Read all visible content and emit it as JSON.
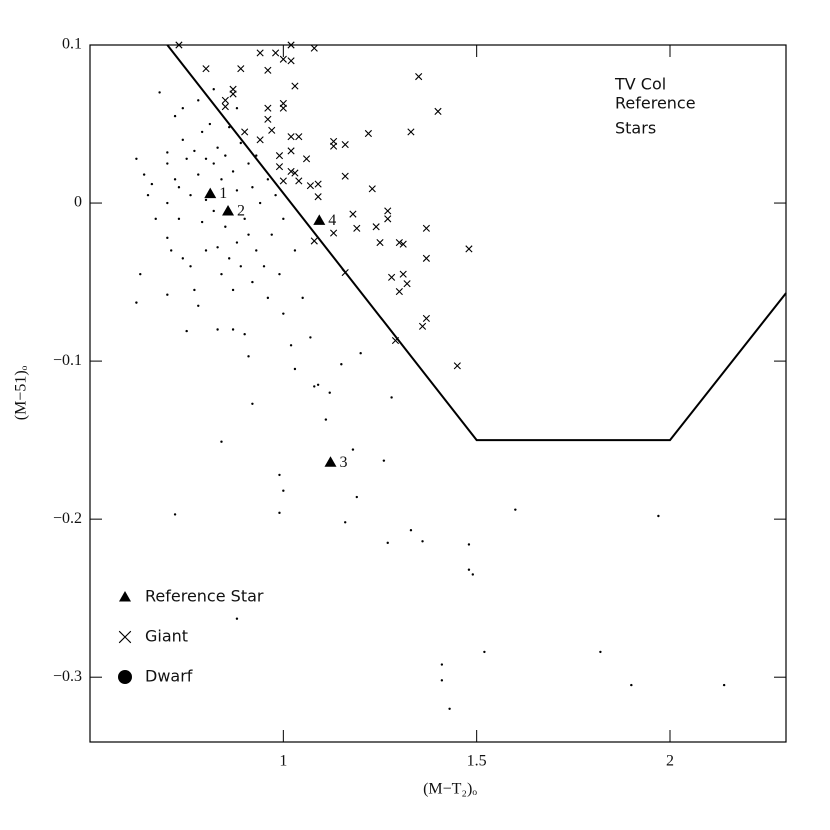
{
  "chart_data": {
    "type": "scatter",
    "annotation": [
      "TV Col",
      "Reference",
      "Stars"
    ],
    "x_label": "(M−T₂)ₒ",
    "y_label": "(M−51)ₒ",
    "xlim": [
      0.5,
      2.3
    ],
    "ylim": [
      -0.341,
      0.1
    ],
    "xticks": [
      1,
      1.5,
      2
    ],
    "yticks": [
      0.1,
      0,
      {
        "value": -0.1,
        "label": "−0.1"
      },
      {
        "value": -0.2,
        "label": "−0.2"
      },
      {
        "value": -0.3,
        "label": "−0.3"
      }
    ],
    "legend": "lower left",
    "boundary": {
      "x": [
        0.7,
        1.5,
        2.0,
        2.3
      ],
      "y": [
        0.1,
        -0.15,
        -0.15,
        -0.057
      ],
      "color": "#000000"
    },
    "series": [
      {
        "name": "Dwarf",
        "marker": "dot",
        "color": "#000000",
        "x": [
          0.62,
          0.64,
          0.65,
          0.63,
          0.62,
          0.66,
          0.67,
          0.68,
          0.7,
          0.7,
          0.7,
          0.7,
          0.71,
          0.7,
          0.72,
          0.72,
          0.73,
          0.73,
          0.74,
          0.74,
          0.75,
          0.75,
          0.76,
          0.76,
          0.77,
          0.77,
          0.78,
          0.78,
          0.79,
          0.79,
          0.8,
          0.8,
          0.8,
          0.81,
          0.82,
          0.82,
          0.83,
          0.83,
          0.84,
          0.84,
          0.85,
          0.85,
          0.86,
          0.86,
          0.87,
          0.87,
          0.88,
          0.88,
          0.89,
          0.89,
          0.9,
          0.9,
          0.91,
          0.91,
          0.92,
          0.92,
          0.93,
          0.93,
          0.94,
          0.95,
          0.96,
          0.96,
          0.97,
          0.98,
          0.99,
          1.0,
          1.0,
          1.02,
          1.03,
          1.05,
          0.74,
          0.78,
          0.82,
          0.88,
          0.87,
          0.92,
          0.84,
          0.99,
          1.0,
          0.99,
          0.72,
          0.88,
          1.08,
          1.11,
          1.12,
          1.09,
          1.15,
          1.2,
          1.16,
          1.18,
          1.19,
          1.26,
          1.27,
          1.28,
          1.33,
          1.36,
          1.41,
          1.41,
          1.43,
          1.48,
          1.48,
          1.49,
          1.52,
          1.6,
          1.82,
          1.9,
          1.97,
          2.14,
          1.07,
          1.03,
          0.91,
          0.83
        ],
        "values": [
          0.028,
          0.018,
          0.005,
          -0.045,
          -0.063,
          0.012,
          -0.01,
          0.07,
          0.032,
          0.025,
          0.0,
          -0.022,
          -0.03,
          -0.058,
          0.055,
          0.015,
          0.01,
          -0.01,
          0.04,
          -0.035,
          0.028,
          -0.081,
          0.005,
          -0.04,
          0.033,
          -0.055,
          0.018,
          -0.065,
          0.045,
          -0.012,
          0.028,
          0.002,
          -0.03,
          0.05,
          0.025,
          -0.005,
          0.035,
          -0.028,
          0.015,
          -0.045,
          0.03,
          -0.015,
          0.048,
          -0.035,
          0.02,
          -0.055,
          0.008,
          -0.025,
          0.038,
          -0.04,
          -0.01,
          -0.083,
          0.025,
          -0.02,
          0.01,
          -0.05,
          0.03,
          -0.03,
          0.0,
          -0.04,
          0.015,
          -0.06,
          -0.02,
          0.005,
          -0.045,
          -0.01,
          -0.07,
          -0.09,
          -0.03,
          -0.06,
          0.06,
          0.065,
          0.072,
          0.06,
          -0.08,
          -0.127,
          -0.151,
          -0.172,
          -0.182,
          -0.196,
          -0.197,
          -0.263,
          -0.116,
          -0.137,
          -0.12,
          -0.115,
          -0.102,
          -0.095,
          -0.202,
          -0.156,
          -0.186,
          -0.163,
          -0.215,
          -0.123,
          -0.207,
          -0.214,
          -0.292,
          -0.302,
          -0.32,
          -0.216,
          -0.232,
          -0.235,
          -0.284,
          -0.194,
          -0.284,
          -0.305,
          -0.198,
          -0.305,
          -0.085,
          -0.105,
          -0.097,
          -0.08
        ]
      },
      {
        "name": "Giant",
        "marker": "cross",
        "color": "#000000",
        "x": [
          0.73,
          0.8,
          0.89,
          0.94,
          0.98,
          0.96,
          1.02,
          1.0,
          1.02,
          1.08,
          1.03,
          0.85,
          0.85,
          0.87,
          0.87,
          0.96,
          1.0,
          1.0,
          0.9,
          0.94,
          0.96,
          0.97,
          1.02,
          1.04,
          1.02,
          0.99,
          1.06,
          1.13,
          1.13,
          1.16,
          1.22,
          1.35,
          1.4,
          1.33,
          0.99,
          1.02,
          1.03,
          1.0,
          1.04,
          1.07,
          1.09,
          1.09,
          1.16,
          1.23,
          1.27,
          1.27,
          1.18,
          1.13,
          1.19,
          1.24,
          1.25,
          1.3,
          1.31,
          1.37,
          1.37,
          1.48,
          1.28,
          1.31,
          1.3,
          1.32,
          1.36,
          1.37,
          1.45,
          1.29,
          1.16,
          1.08
        ],
        "values": [
          0.1,
          0.085,
          0.085,
          0.095,
          0.095,
          0.084,
          0.1,
          0.091,
          0.09,
          0.098,
          0.074,
          0.065,
          0.061,
          0.072,
          0.069,
          0.06,
          0.063,
          0.06,
          0.045,
          0.04,
          0.053,
          0.046,
          0.042,
          0.042,
          0.033,
          0.03,
          0.028,
          0.039,
          0.036,
          0.037,
          0.044,
          0.08,
          0.058,
          0.045,
          0.023,
          0.02,
          0.019,
          0.014,
          0.014,
          0.011,
          0.012,
          0.004,
          0.017,
          0.009,
          -0.005,
          -0.01,
          -0.007,
          -0.019,
          -0.016,
          -0.015,
          -0.025,
          -0.025,
          -0.026,
          -0.016,
          -0.035,
          -0.029,
          -0.047,
          -0.045,
          -0.056,
          -0.051,
          -0.078,
          -0.073,
          -0.103,
          -0.087,
          -0.044,
          -0.024
        ]
      },
      {
        "name": "Reference Star",
        "marker": "triangle",
        "color": "#000000",
        "x": [
          0.811,
          0.857,
          1.122,
          1.093
        ],
        "values": [
          0.006,
          -0.005,
          -0.164,
          -0.011
        ],
        "labels": [
          "1",
          "2",
          "3",
          "4"
        ]
      }
    ]
  }
}
